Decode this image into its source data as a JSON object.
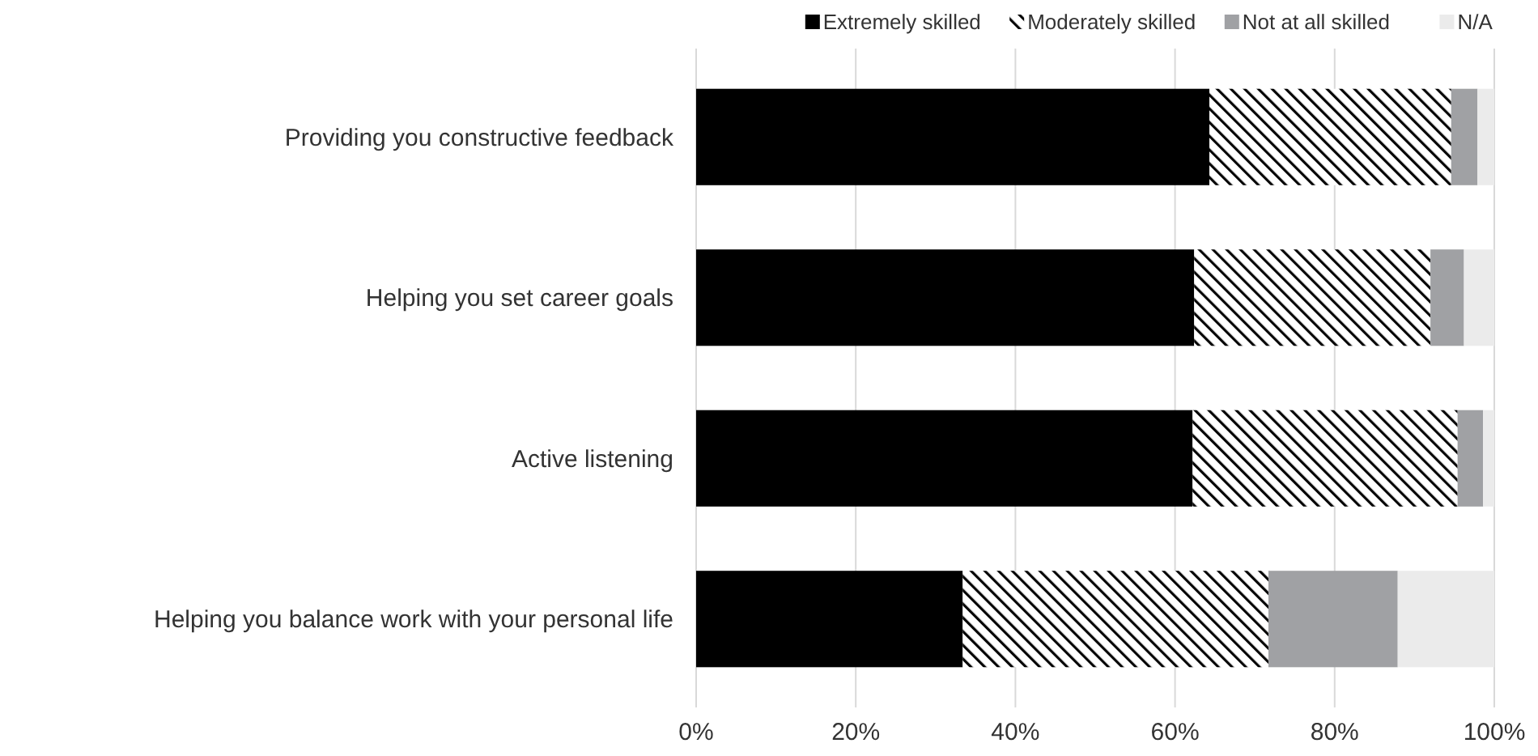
{
  "chart_data": {
    "type": "bar",
    "orientation": "horizontal",
    "stacked": true,
    "categories": [
      "Providing you constructive feedback",
      "Helping you set career goals",
      "Active listening",
      "Helping you balance work with your personal life"
    ],
    "series": [
      {
        "name": "Extremely skilled",
        "color": "#000000",
        "values": [
          64.3,
          62.4,
          62.2,
          33.4
        ]
      },
      {
        "name": "Moderately skilled",
        "color": "#000000",
        "values": [
          30.3,
          29.6,
          33.2,
          38.3
        ]
      },
      {
        "name": "Not at all skilled",
        "color": "#a0a1a4",
        "values": [
          3.3,
          4.2,
          3.2,
          16.2
        ]
      },
      {
        "name": "N/A",
        "color": "#ebebeb",
        "values": [
          2.1,
          3.8,
          1.4,
          12.1
        ]
      }
    ],
    "xlim": [
      0,
      100
    ],
    "xticks": [
      {
        "value": 0,
        "label": "0%"
      },
      {
        "value": 20,
        "label": "20%"
      },
      {
        "value": 40,
        "label": "40%"
      },
      {
        "value": 60,
        "label": "60%"
      },
      {
        "value": 80,
        "label": "80%"
      },
      {
        "value": 100,
        "label": "100%"
      }
    ],
    "grid": "x",
    "legend": "top right"
  }
}
